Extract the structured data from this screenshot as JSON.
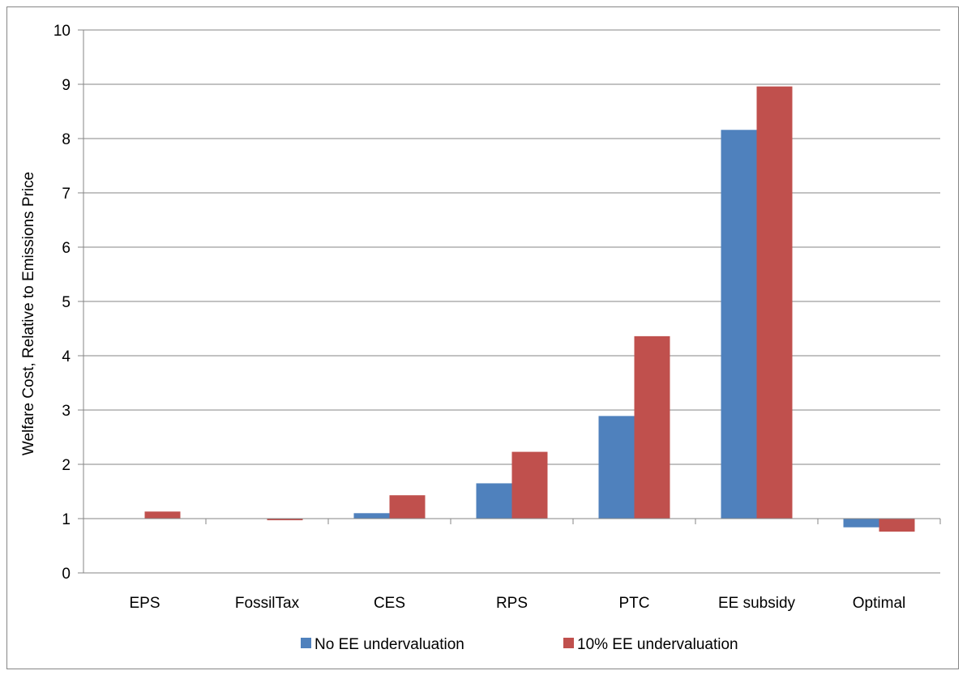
{
  "chart_data": {
    "type": "bar",
    "ylabel": "Welfare Cost, Relative to Emissions Price",
    "xlabel": "",
    "ylim": [
      0,
      10
    ],
    "yticks": [
      0,
      1,
      2,
      3,
      4,
      5,
      6,
      7,
      8,
      9,
      10
    ],
    "baseline": 1,
    "grid": true,
    "legend_position": "bottom",
    "categories": [
      "EPS",
      "FossilTax",
      "CES",
      "RPS",
      "PTC",
      "EE subsidy",
      "Optimal"
    ],
    "series": [
      {
        "name": "No EE undervaluation",
        "color": "#4F81BD",
        "values": [
          1.0,
          1.0,
          1.1,
          1.65,
          2.89,
          8.16,
          0.84
        ]
      },
      {
        "name": "10% EE undervaluation",
        "color": "#C0504D",
        "values": [
          1.13,
          0.97,
          1.43,
          2.23,
          4.36,
          8.96,
          0.76
        ]
      }
    ]
  }
}
